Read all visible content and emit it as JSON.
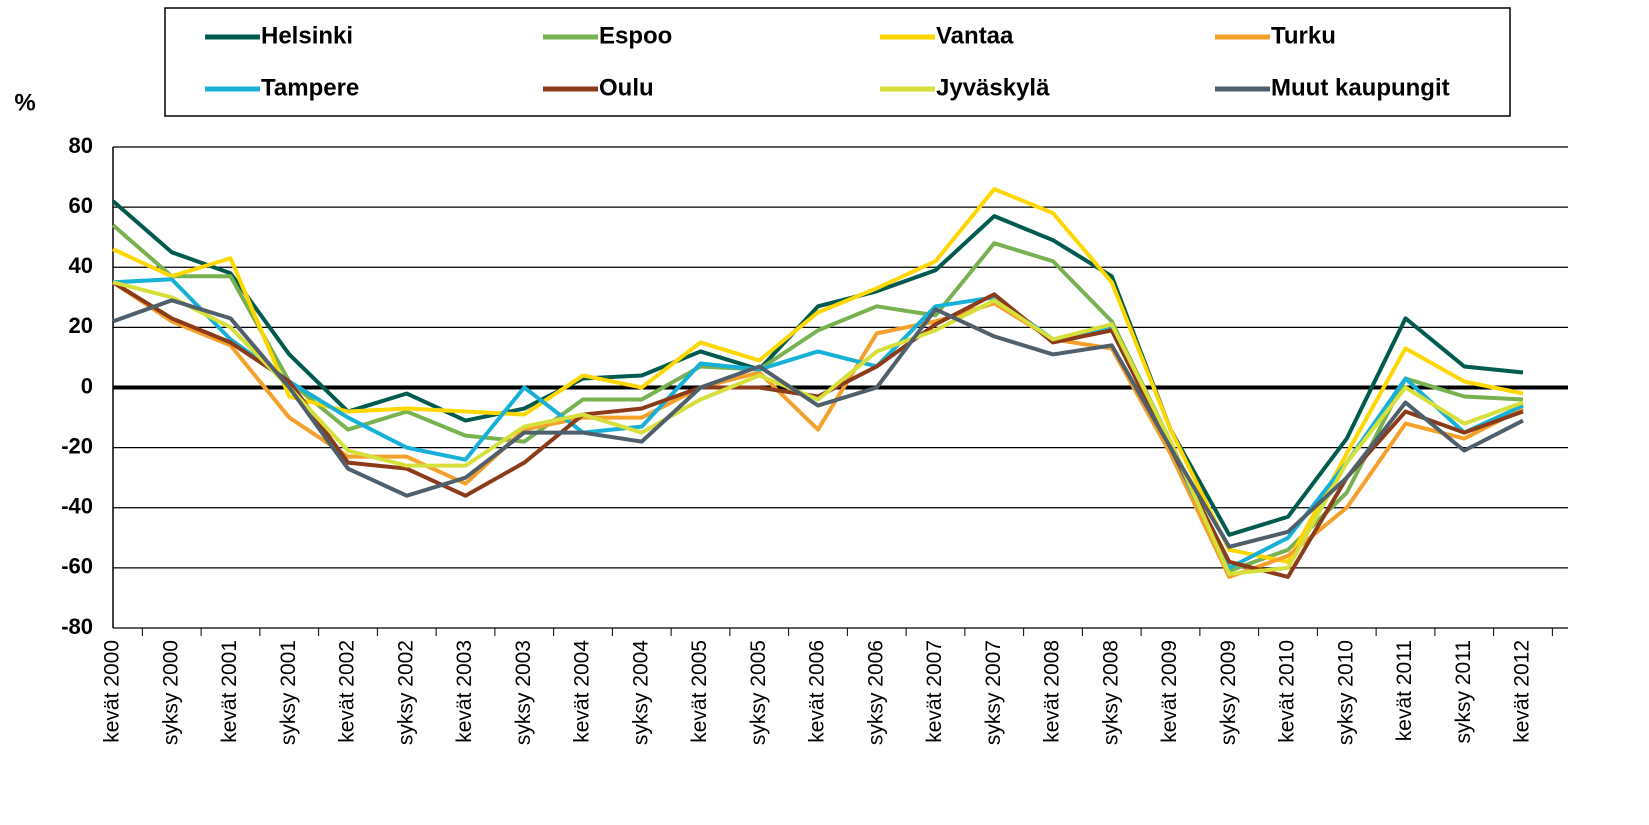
{
  "chart_data": {
    "type": "line",
    "ylabel": "%",
    "categories": [
      "kevät 2000",
      "syksy 2000",
      "kevät 2001",
      "syksy 2001",
      "kevät 2002",
      "syksy 2002",
      "kevät 2003",
      "syksy 2003",
      "kevät 2004",
      "syksy 2004",
      "kevät 2005",
      "syksy 2005",
      "kevät 2006",
      "syksy 2006",
      "kevät 2007",
      "syksy 2007",
      "kevät 2008",
      "syksy 2008",
      "kevät 2009",
      "syksy 2009",
      "kevät 2010",
      "syksy 2010",
      "kevät 2011",
      "syksy 2011",
      "kevät 2012"
    ],
    "series": [
      {
        "name": "Helsinki",
        "color": "#005a4e",
        "values": [
          62,
          45,
          38,
          11,
          -8,
          -2,
          -11,
          -7,
          3,
          4,
          12,
          6,
          27,
          32,
          39,
          57,
          49,
          37,
          -14,
          -49,
          -43,
          -17,
          23,
          7,
          5
        ]
      },
      {
        "name": "Espoo",
        "color": "#77b150",
        "values": [
          54,
          37,
          37,
          2,
          -14,
          -8,
          -16,
          -18,
          -4,
          -4,
          7,
          6,
          19,
          27,
          24,
          48,
          42,
          22,
          -18,
          -61,
          -54,
          -35,
          3,
          -3,
          -4
        ]
      },
      {
        "name": "Vantaa",
        "color": "#ffd700",
        "values": [
          46,
          37,
          43,
          -3,
          -8,
          -7,
          -8,
          -9,
          4,
          0,
          15,
          9,
          25,
          33,
          42,
          66,
          58,
          35,
          -14,
          -54,
          -58,
          -22,
          13,
          2,
          -2
        ]
      },
      {
        "name": "Turku",
        "color": "#f4a02a",
        "values": [
          35,
          22,
          14,
          -10,
          -23,
          -23,
          -32,
          -14,
          -10,
          -10,
          0,
          5,
          -14,
          18,
          22,
          28,
          16,
          13,
          -22,
          -63,
          -56,
          -40,
          -12,
          -17,
          -7
        ]
      },
      {
        "name": "Tampere",
        "color": "#17b0d8",
        "values": [
          35,
          36,
          16,
          2,
          -10,
          -20,
          -24,
          0,
          -15,
          -13,
          8,
          6,
          12,
          7,
          27,
          30,
          16,
          20,
          -20,
          -60,
          -50,
          -25,
          3,
          -15,
          -6
        ]
      },
      {
        "name": "Oulu",
        "color": "#8b3a1a",
        "values": [
          35,
          23,
          15,
          2,
          -25,
          -27,
          -36,
          -25,
          -9,
          -7,
          0,
          0,
          -3,
          7,
          21,
          31,
          15,
          19,
          -20,
          -58,
          -63,
          -30,
          -8,
          -15,
          -8
        ]
      },
      {
        "name": "Jyväskylä",
        "color": "#d7df3a",
        "values": [
          35,
          30,
          20,
          0,
          -21,
          -26,
          -26,
          -13,
          -9,
          -15,
          -4,
          4,
          -4,
          12,
          19,
          29,
          16,
          21,
          -18,
          -62,
          -60,
          -25,
          0,
          -12,
          -5
        ]
      },
      {
        "name": "Muut kaupungit",
        "color": "#4f5f6b",
        "values": [
          22,
          29,
          23,
          0,
          -27,
          -36,
          -30,
          -15,
          -15,
          -18,
          0,
          7,
          -6,
          0,
          26,
          17,
          11,
          14,
          -20,
          -53,
          -48,
          -30,
          -5,
          -21,
          -11
        ]
      }
    ],
    "ylim": [
      -80,
      80
    ],
    "yticks": [
      -80,
      -60,
      -40,
      -20,
      0,
      20,
      40,
      60,
      80
    ],
    "grid": true,
    "legend": "top"
  }
}
